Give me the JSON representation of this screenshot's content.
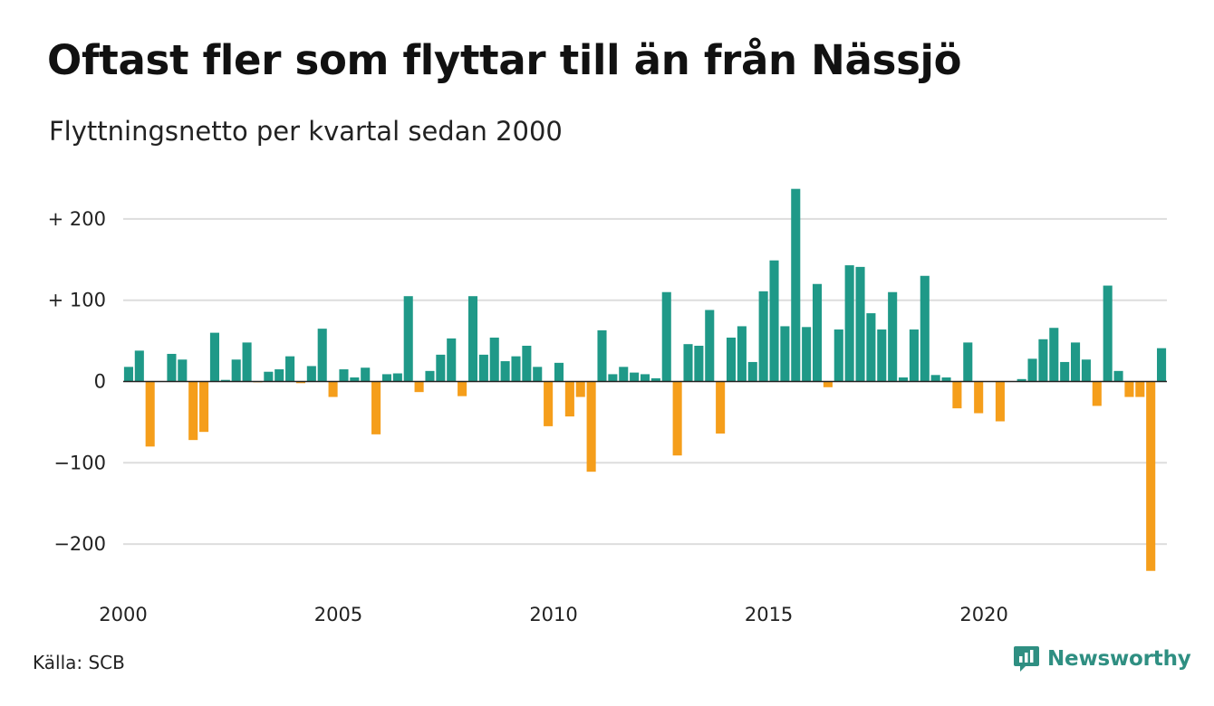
{
  "title": "Oftast fler som flyttar till än från Nässjö",
  "subtitle": "Flyttningsnetto per kvartal sedan 2000",
  "source": "Källa: SCB",
  "brand": {
    "name": "Newsworthy",
    "icon": "newsworthy-logo-icon",
    "color": "#2f8f82"
  },
  "colors": {
    "positive": "#1f9988",
    "negative": "#f59e1b",
    "grid": "#dddddd",
    "zero_line": "#222222"
  },
  "chart_data": {
    "type": "bar",
    "title": "Oftast fler som flyttar till än från Nässjö",
    "subtitle": "Flyttningsnetto per kvartal sedan 2000",
    "xlabel": "",
    "ylabel": "",
    "ylim": [
      -250,
      250
    ],
    "x_start": 2000,
    "x_end": 2024,
    "grid": true,
    "y_ticks": [
      {
        "value": 200,
        "label": "+ 200"
      },
      {
        "value": 100,
        "label": "+ 100"
      },
      {
        "value": 0,
        "label": "0"
      },
      {
        "value": -100,
        "label": "−100"
      },
      {
        "value": -200,
        "label": "−200"
      }
    ],
    "x_ticks": [
      {
        "value": 2000,
        "label": "2000"
      },
      {
        "value": 2005,
        "label": "2005"
      },
      {
        "value": 2010,
        "label": "2010"
      },
      {
        "value": 2015,
        "label": "2015"
      },
      {
        "value": 2020,
        "label": "2020"
      }
    ],
    "categories": [
      "2000 K1",
      "2000 K2",
      "2000 K3",
      "2000 K4",
      "2001 K1",
      "2001 K2",
      "2001 K3",
      "2001 K4",
      "2002 K1",
      "2002 K2",
      "2002 K3",
      "2002 K4",
      "2003 K1",
      "2003 K2",
      "2003 K3",
      "2003 K4",
      "2004 K1",
      "2004 K2",
      "2004 K3",
      "2004 K4",
      "2005 K1",
      "2005 K2",
      "2005 K3",
      "2005 K4",
      "2006 K1",
      "2006 K2",
      "2006 K3",
      "2006 K4",
      "2007 K1",
      "2007 K2",
      "2007 K3",
      "2007 K4",
      "2008 K1",
      "2008 K2",
      "2008 K3",
      "2008 K4",
      "2009 K1",
      "2009 K2",
      "2009 K3",
      "2009 K4",
      "2010 K1",
      "2010 K2",
      "2010 K3",
      "2010 K4",
      "2011 K1",
      "2011 K2",
      "2011 K3",
      "2011 K4",
      "2012 K1",
      "2012 K2",
      "2012 K3",
      "2012 K4",
      "2013 K1",
      "2013 K2",
      "2013 K3",
      "2013 K4",
      "2014 K1",
      "2014 K2",
      "2014 K3",
      "2014 K4",
      "2015 K1",
      "2015 K2",
      "2015 K3",
      "2015 K4",
      "2016 K1",
      "2016 K2",
      "2016 K3",
      "2016 K4",
      "2017 K1",
      "2017 K2",
      "2017 K3",
      "2017 K4",
      "2018 K1",
      "2018 K2",
      "2018 K3",
      "2018 K4",
      "2019 K1",
      "2019 K2",
      "2019 K3",
      "2019 K4",
      "2020 K1",
      "2020 K2",
      "2020 K3",
      "2020 K4",
      "2021 K1",
      "2021 K2",
      "2021 K3",
      "2021 K4",
      "2022 K1",
      "2022 K2",
      "2022 K3",
      "2022 K4",
      "2023 K1",
      "2023 K2",
      "2023 K3",
      "2023 K4",
      "2024 K1"
    ],
    "values": [
      18,
      38,
      -80,
      0,
      34,
      27,
      -72,
      -62,
      60,
      2,
      27,
      48,
      -1,
      12,
      15,
      31,
      -2,
      19,
      65,
      -19,
      15,
      5,
      17,
      -65,
      9,
      10,
      105,
      -13,
      13,
      33,
      53,
      -18,
      105,
      33,
      54,
      25,
      31,
      44,
      18,
      -55,
      23,
      -43,
      -19,
      -111,
      63,
      9,
      18,
      11,
      9,
      4,
      110,
      -91,
      46,
      44,
      88,
      -64,
      54,
      68,
      24,
      111,
      149,
      68,
      237,
      67,
      120,
      -7,
      64,
      143,
      141,
      84,
      64,
      110,
      5,
      64,
      130,
      8,
      5,
      -33,
      48,
      -39,
      0,
      -49,
      0,
      3,
      28,
      52,
      66,
      24,
      48,
      27,
      -30,
      118,
      13,
      -19,
      -19,
      -233,
      41
    ]
  }
}
